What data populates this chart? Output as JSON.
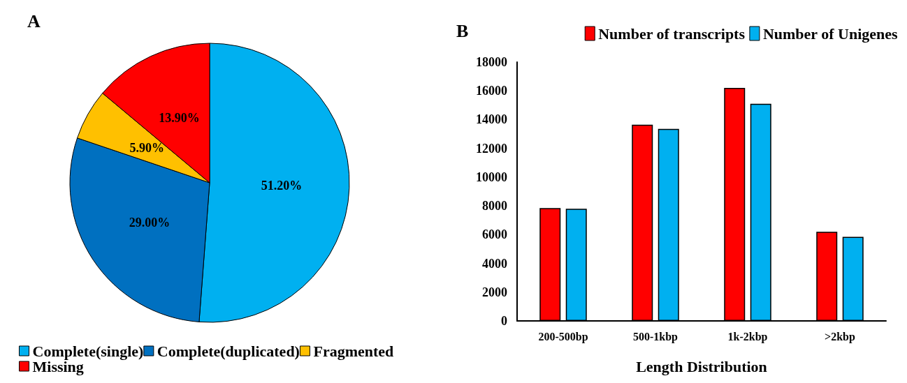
{
  "chart_data": [
    {
      "type": "pie",
      "title": "A",
      "categories": [
        "Complete(single)",
        "Complete(duplicated)",
        "Fragmented",
        "Missing"
      ],
      "values": [
        51.2,
        29.0,
        5.9,
        13.9
      ],
      "colors": [
        "#00b0f0",
        "#0070c0",
        "#ffc000",
        "#ff0000"
      ],
      "value_labels": [
        "51.20%",
        "29.00%",
        "5.90%",
        "13.90%"
      ],
      "legend": "bottom"
    },
    {
      "type": "bar",
      "title": "B",
      "xlabel": "Length Distribution",
      "categories": [
        "200-500bp",
        "500-1kbp",
        "1k-2kbp",
        ">2kbp"
      ],
      "series": [
        {
          "name": "Number of transcripts",
          "color": "#ff0000",
          "values": [
            7850,
            13650,
            16200,
            6200
          ]
        },
        {
          "name": "Number of Unigenes",
          "color": "#00b0f0",
          "values": [
            7800,
            13350,
            15100,
            5850
          ]
        }
      ],
      "ylim": [
        0,
        18000
      ],
      "yticks": [
        0,
        2000,
        4000,
        6000,
        8000,
        10000,
        12000,
        14000,
        16000,
        18000
      ],
      "grid": false,
      "legend": "top right"
    }
  ]
}
